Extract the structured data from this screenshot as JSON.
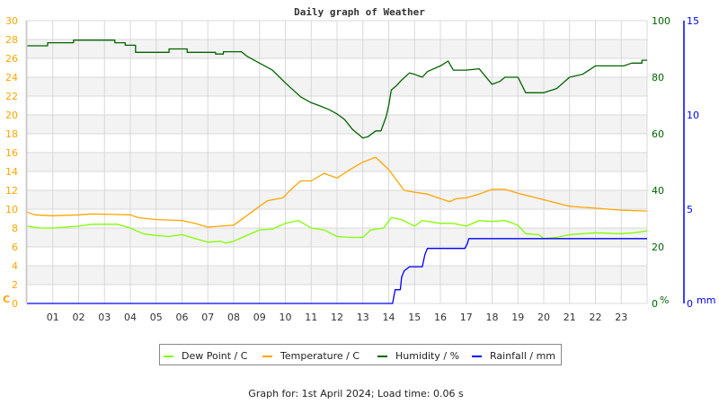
{
  "chart_data": {
    "type": "line",
    "title": "Daily graph of Weather",
    "footer": "Graph for: 1st April 2024; Load time: 0.06 s",
    "grid": true,
    "legend_placement": "bottom",
    "x_axis": {
      "label": "",
      "range": [
        0,
        24
      ],
      "unit": "hour",
      "ticks": [
        "01",
        "02",
        "03",
        "04",
        "05",
        "06",
        "07",
        "08",
        "09",
        "10",
        "11",
        "12",
        "13",
        "14",
        "15",
        "16",
        "17",
        "18",
        "19",
        "20",
        "21",
        "22",
        "23"
      ]
    },
    "y_axes": [
      {
        "id": "temp",
        "label": "C",
        "side": "left",
        "range": [
          0,
          30
        ],
        "ticks": [
          "0",
          "2",
          "4",
          "6",
          "8",
          "10",
          "12",
          "14",
          "16",
          "18",
          "20",
          "22",
          "24",
          "26",
          "28",
          "30"
        ],
        "color": "#ffa500"
      },
      {
        "id": "hum",
        "label": "%",
        "side": "right",
        "range": [
          0,
          100
        ],
        "ticks": [
          "0",
          "20",
          "40",
          "60",
          "80",
          "100"
        ],
        "color": "#006400"
      },
      {
        "id": "rain",
        "label": "mm",
        "side": "right",
        "range": [
          0,
          15
        ],
        "ticks": [
          "0",
          "5",
          "10",
          "15"
        ],
        "color": "#0000ff"
      }
    ],
    "series": [
      {
        "name": "Dew Point / C",
        "axis": "temp",
        "color": "#80ff00",
        "points": [
          [
            0,
            8.2
          ],
          [
            0.5,
            8.0
          ],
          [
            1,
            8.0
          ],
          [
            2,
            8.2
          ],
          [
            2.5,
            8.4
          ],
          [
            3.5,
            8.4
          ],
          [
            4,
            8.0
          ],
          [
            4.5,
            7.4
          ],
          [
            5,
            7.2
          ],
          [
            5.5,
            7.1
          ],
          [
            6,
            7.3
          ],
          [
            6.5,
            6.9
          ],
          [
            7,
            6.5
          ],
          [
            7.5,
            6.6
          ],
          [
            7.7,
            6.4
          ],
          [
            8,
            6.6
          ],
          [
            8.5,
            7.2
          ],
          [
            9,
            7.8
          ],
          [
            9.5,
            7.9
          ],
          [
            10,
            8.5
          ],
          [
            10.5,
            8.8
          ],
          [
            11,
            8.0
          ],
          [
            11.5,
            7.8
          ],
          [
            12,
            7.1
          ],
          [
            12.5,
            7.0
          ],
          [
            13,
            7.0
          ],
          [
            13.3,
            7.8
          ],
          [
            13.8,
            8.0
          ],
          [
            14.1,
            9.1
          ],
          [
            14.5,
            8.9
          ],
          [
            15,
            8.2
          ],
          [
            15.3,
            8.8
          ],
          [
            16,
            8.5
          ],
          [
            16.5,
            8.5
          ],
          [
            17,
            8.2
          ],
          [
            17.5,
            8.8
          ],
          [
            18,
            8.7
          ],
          [
            18.5,
            8.8
          ],
          [
            19,
            8.3
          ],
          [
            19.3,
            7.4
          ],
          [
            19.8,
            7.3
          ],
          [
            20,
            6.9
          ],
          [
            20.5,
            7.0
          ],
          [
            21,
            7.3
          ],
          [
            21.5,
            7.4
          ],
          [
            22,
            7.5
          ],
          [
            23,
            7.4
          ],
          [
            23.5,
            7.5
          ],
          [
            24,
            7.7
          ]
        ]
      },
      {
        "name": "Temperature / C",
        "axis": "temp",
        "color": "#ffa500",
        "points": [
          [
            0,
            9.7
          ],
          [
            0.3,
            9.4
          ],
          [
            1,
            9.3
          ],
          [
            2,
            9.4
          ],
          [
            2.5,
            9.5
          ],
          [
            4,
            9.4
          ],
          [
            4.3,
            9.1
          ],
          [
            5,
            8.9
          ],
          [
            6,
            8.8
          ],
          [
            6.5,
            8.5
          ],
          [
            7,
            8.1
          ],
          [
            7.5,
            8.2
          ],
          [
            8,
            8.3
          ],
          [
            8.5,
            9.3
          ],
          [
            9,
            10.3
          ],
          [
            9.3,
            10.9
          ],
          [
            9.9,
            11.2
          ],
          [
            10.3,
            12.3
          ],
          [
            10.6,
            13.0
          ],
          [
            11,
            13.0
          ],
          [
            11.5,
            13.8
          ],
          [
            12,
            13.3
          ],
          [
            12.5,
            14.2
          ],
          [
            13,
            15.0
          ],
          [
            13.5,
            15.5
          ],
          [
            14,
            14.2
          ],
          [
            14.6,
            12.0
          ],
          [
            15,
            11.8
          ],
          [
            15.5,
            11.6
          ],
          [
            16.35,
            10.8
          ],
          [
            16.6,
            11.1
          ],
          [
            17,
            11.2
          ],
          [
            17.5,
            11.6
          ],
          [
            18,
            12.1
          ],
          [
            18.5,
            12.1
          ],
          [
            19,
            11.7
          ],
          [
            20,
            11.0
          ],
          [
            21,
            10.3
          ],
          [
            22,
            10.1
          ],
          [
            23,
            9.9
          ],
          [
            24,
            9.8
          ]
        ]
      },
      {
        "name": "Humidity / %",
        "axis": "hum",
        "color": "#006400",
        "points": [
          [
            0,
            91.1
          ],
          [
            0.8,
            91.1
          ],
          [
            0.8,
            92.2
          ],
          [
            1.8,
            92.2
          ],
          [
            1.8,
            93.1
          ],
          [
            3.4,
            93.1
          ],
          [
            3.4,
            92.2
          ],
          [
            3.8,
            92.2
          ],
          [
            3.8,
            91.3
          ],
          [
            4.2,
            91.3
          ],
          [
            4.2,
            88.8
          ],
          [
            5.5,
            88.8
          ],
          [
            5.5,
            90.0
          ],
          [
            6.2,
            90.0
          ],
          [
            6.2,
            88.8
          ],
          [
            7.3,
            88.8
          ],
          [
            7.3,
            88.2
          ],
          [
            7.6,
            88.2
          ],
          [
            7.6,
            89.0
          ],
          [
            8.3,
            89.0
          ],
          [
            8.5,
            87.5
          ],
          [
            9,
            85.0
          ],
          [
            9.5,
            82.5
          ],
          [
            10,
            78.0
          ],
          [
            10.3,
            75.5
          ],
          [
            10.6,
            73.0
          ],
          [
            11,
            71.0
          ],
          [
            11.3,
            70.0
          ],
          [
            11.7,
            68.5
          ],
          [
            12,
            67.0
          ],
          [
            12.3,
            65.0
          ],
          [
            12.6,
            61.5
          ],
          [
            13,
            58.5
          ],
          [
            13.2,
            59.0
          ],
          [
            13.5,
            61.0
          ],
          [
            13.7,
            61.0
          ],
          [
            13.9,
            66.0
          ],
          [
            14,
            70.0
          ],
          [
            14.1,
            75.5
          ],
          [
            14.3,
            77.0
          ],
          [
            14.5,
            79.0
          ],
          [
            14.8,
            81.5
          ],
          [
            15,
            81.0
          ],
          [
            15.3,
            80.0
          ],
          [
            15.5,
            82.0
          ],
          [
            16,
            84.0
          ],
          [
            16.3,
            85.7
          ],
          [
            16.5,
            82.5
          ],
          [
            17,
            82.5
          ],
          [
            17.5,
            83.0
          ],
          [
            18,
            77.5
          ],
          [
            18.3,
            78.5
          ],
          [
            18.5,
            80.0
          ],
          [
            19,
            80.0
          ],
          [
            19.3,
            74.5
          ],
          [
            20,
            74.5
          ],
          [
            20.5,
            76.0
          ],
          [
            21,
            80.0
          ],
          [
            21.5,
            81.0
          ],
          [
            22,
            84.0
          ],
          [
            23.1,
            84.0
          ],
          [
            23.4,
            85.0
          ],
          [
            23.8,
            85.0
          ],
          [
            23.8,
            86.0
          ],
          [
            24,
            86.0
          ]
        ]
      },
      {
        "name": "Rainfall / mm",
        "axis": "rain",
        "color": "#0000ff",
        "points": [
          [
            0,
            0
          ],
          [
            14.15,
            0
          ],
          [
            14.25,
            0.73
          ],
          [
            14.45,
            0.73
          ],
          [
            14.5,
            1.4
          ],
          [
            14.6,
            1.73
          ],
          [
            14.8,
            1.95
          ],
          [
            15.3,
            1.95
          ],
          [
            15.4,
            2.6
          ],
          [
            15.5,
            2.92
          ],
          [
            16.95,
            2.92
          ],
          [
            17.05,
            3.2
          ],
          [
            17.1,
            3.44
          ],
          [
            24,
            3.44
          ]
        ]
      }
    ]
  }
}
